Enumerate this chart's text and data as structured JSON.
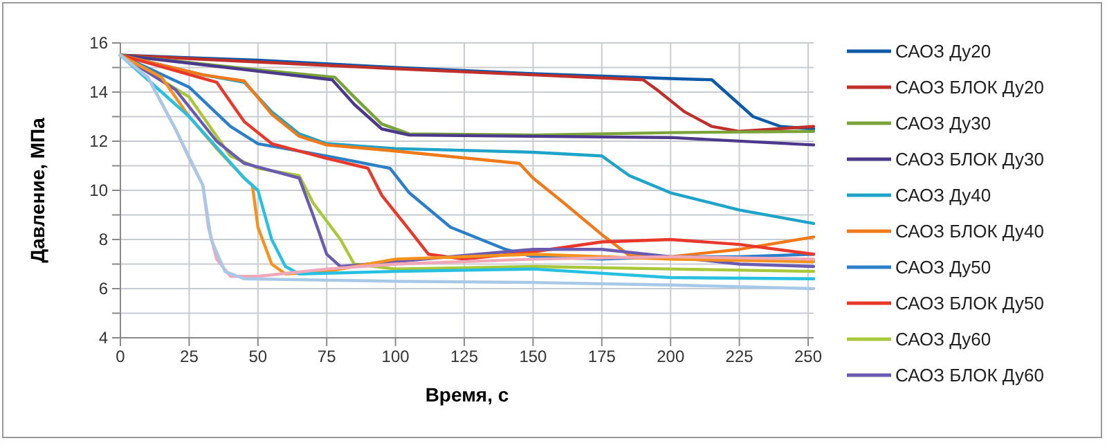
{
  "chart_data": {
    "type": "line",
    "xlabel": "Время, с",
    "ylabel": "Давление, МПа",
    "xlim": [
      0,
      252
    ],
    "ylim": [
      4,
      16
    ],
    "xticks": [
      0,
      25,
      50,
      75,
      100,
      125,
      150,
      175,
      200,
      225,
      250
    ],
    "yticks": [
      4,
      {
        "value": 5,
        "label": null
      },
      6,
      {
        "value": 7,
        "label": null
      },
      8,
      {
        "value": 9,
        "label": null
      },
      10,
      {
        "value": 11,
        "label": null
      },
      12,
      {
        "value": 13,
        "label": null
      },
      14,
      {
        "value": 15,
        "label": null
      },
      16
    ],
    "grid": true,
    "legend": "right",
    "marker": "none",
    "line_style": "solid",
    "series": [
      {
        "name": "САОЗ Ду20",
        "color": "#0e5aa7",
        "x": [
          0,
          50,
          100,
          150,
          200,
          215,
          220,
          230,
          240,
          252
        ],
        "values": [
          15.5,
          15.3,
          15.0,
          14.75,
          14.55,
          14.5,
          14.0,
          13.0,
          12.6,
          12.5
        ]
      },
      {
        "name": "САОЗ БЛОК Ду20",
        "color": "#c0302a",
        "x": [
          0,
          100,
          150,
          190,
          195,
          205,
          215,
          225,
          252
        ],
        "values": [
          15.5,
          14.95,
          14.7,
          14.5,
          14.1,
          13.2,
          12.6,
          12.4,
          12.6
        ]
      },
      {
        "name": "САОЗ Ду30",
        "color": "#7aa33a",
        "x": [
          0,
          50,
          78,
          85,
          95,
          105,
          150,
          200,
          252
        ],
        "values": [
          15.5,
          14.9,
          14.6,
          13.8,
          12.7,
          12.3,
          12.25,
          12.35,
          12.4
        ]
      },
      {
        "name": "САОЗ БЛОК Ду30",
        "color": "#4b3a8c",
        "x": [
          0,
          50,
          77,
          85,
          95,
          105,
          150,
          200,
          252
        ],
        "values": [
          15.5,
          14.85,
          14.5,
          13.5,
          12.5,
          12.25,
          12.2,
          12.15,
          11.85
        ]
      },
      {
        "name": "САОЗ Ду40",
        "color": "#1ea4c8",
        "x": [
          0,
          30,
          45,
          55,
          65,
          75,
          100,
          150,
          175,
          185,
          200,
          225,
          252
        ],
        "values": [
          15.5,
          14.7,
          14.4,
          13.2,
          12.3,
          11.9,
          11.7,
          11.55,
          11.4,
          10.6,
          9.9,
          9.2,
          8.65
        ]
      },
      {
        "name": "САОЗ БЛОК Ду40",
        "color": "#f07a1a",
        "x": [
          0,
          30,
          45,
          55,
          65,
          75,
          100,
          145,
          150,
          160,
          175,
          185,
          200,
          225,
          252
        ],
        "values": [
          15.5,
          14.7,
          14.45,
          13.1,
          12.2,
          11.85,
          11.6,
          11.1,
          10.5,
          9.6,
          8.2,
          7.35,
          7.3,
          7.6,
          8.1
        ]
      },
      {
        "name": "САОЗ Ду50",
        "color": "#2a7fc8",
        "x": [
          0,
          25,
          40,
          50,
          75,
          98,
          105,
          120,
          140,
          150,
          175,
          200,
          225,
          252
        ],
        "values": [
          15.5,
          14.2,
          12.6,
          11.9,
          11.4,
          10.9,
          9.9,
          8.5,
          7.6,
          7.3,
          7.2,
          7.3,
          7.3,
          7.4
        ]
      },
      {
        "name": "САОЗ БЛОК Ду50",
        "color": "#e8382a",
        "x": [
          0,
          35,
          45,
          55,
          75,
          90,
          95,
          105,
          112,
          125,
          150,
          175,
          200,
          225,
          252
        ],
        "values": [
          15.5,
          14.4,
          12.8,
          11.9,
          11.3,
          10.9,
          9.8,
          8.4,
          7.4,
          7.2,
          7.5,
          7.9,
          8.0,
          7.8,
          7.4
        ]
      },
      {
        "name": "САОЗ Ду60",
        "color": "#a8c83a",
        "x": [
          0,
          25,
          40,
          50,
          65,
          70,
          80,
          85,
          100,
          150,
          200,
          252
        ],
        "values": [
          15.5,
          13.8,
          11.4,
          10.9,
          10.6,
          9.5,
          8.0,
          7.0,
          6.8,
          6.9,
          6.8,
          6.7
        ]
      },
      {
        "name": "САОЗ БЛОК Ду60",
        "color": "#6a5ab0",
        "x": [
          0,
          20,
          35,
          45,
          55,
          65,
          70,
          75,
          80,
          100,
          150,
          175,
          200,
          225,
          252
        ],
        "values": [
          15.5,
          14.1,
          12.0,
          11.1,
          10.8,
          10.5,
          9.0,
          7.4,
          6.9,
          7.1,
          7.6,
          7.6,
          7.3,
          7.0,
          6.9
        ]
      },
      {
        "color": "#f5921e",
        "x": [
          0,
          15,
          25,
          35,
          45,
          48,
          50,
          55,
          60,
          75,
          100,
          150,
          200,
          252
        ],
        "values": [
          15.5,
          14.6,
          13.0,
          11.7,
          10.5,
          10.2,
          8.5,
          7.0,
          6.6,
          6.7,
          7.2,
          7.4,
          7.2,
          7.1
        ]
      },
      {
        "color": "#28c0e0",
        "x": [
          0,
          25,
          45,
          50,
          55,
          60,
          65,
          100,
          150,
          200,
          252
        ],
        "values": [
          15.5,
          13.0,
          10.5,
          10.0,
          8.0,
          6.9,
          6.6,
          6.7,
          6.8,
          6.45,
          6.4
        ]
      },
      {
        "color": "#f0a8b8",
        "x": [
          0,
          10,
          20,
          25,
          30,
          32,
          35,
          40,
          50,
          75,
          100,
          150,
          200,
          252
        ],
        "values": [
          15.5,
          14.6,
          12.5,
          11.3,
          10.2,
          8.5,
          7.2,
          6.5,
          6.5,
          6.8,
          7.0,
          7.2,
          7.3,
          7.2
        ]
      },
      {
        "color": "#a8c8e8",
        "x": [
          0,
          10,
          20,
          30,
          33,
          38,
          45,
          100,
          150,
          200,
          252
        ],
        "values": [
          15.5,
          14.6,
          12.5,
          10.2,
          8.0,
          6.7,
          6.4,
          6.3,
          6.25,
          6.15,
          6.0
        ]
      }
    ]
  }
}
